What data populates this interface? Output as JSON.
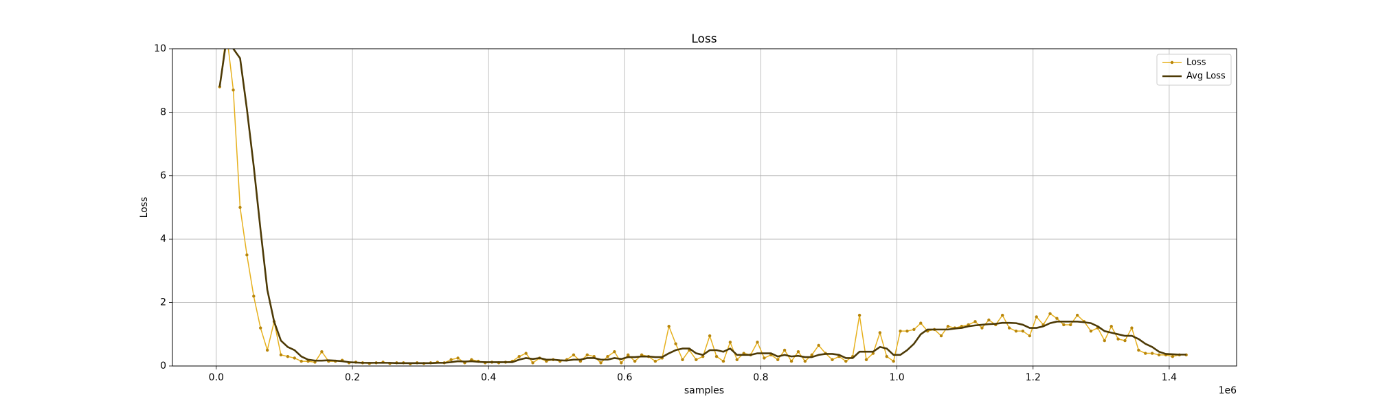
{
  "chart_data": {
    "type": "line",
    "title": "Loss",
    "xlabel": "samples",
    "ylabel": "Loss",
    "x_offset_label": "1e6",
    "x": [
      5000,
      15000,
      25000,
      35000,
      45000,
      55000,
      65000,
      75000,
      85000,
      95000,
      105000,
      115000,
      125000,
      135000,
      145000,
      155000,
      165000,
      175000,
      185000,
      195000,
      205000,
      215000,
      225000,
      235000,
      245000,
      255000,
      265000,
      275000,
      285000,
      295000,
      305000,
      315000,
      325000,
      335000,
      345000,
      355000,
      365000,
      375000,
      385000,
      395000,
      405000,
      415000,
      425000,
      435000,
      445000,
      455000,
      465000,
      475000,
      485000,
      495000,
      505000,
      515000,
      525000,
      535000,
      545000,
      555000,
      565000,
      575000,
      585000,
      595000,
      605000,
      615000,
      625000,
      635000,
      645000,
      655000,
      665000,
      675000,
      685000,
      695000,
      705000,
      715000,
      725000,
      735000,
      745000,
      755000,
      765000,
      775000,
      785000,
      795000,
      805000,
      815000,
      825000,
      835000,
      845000,
      855000,
      865000,
      875000,
      885000,
      895000,
      905000,
      915000,
      925000,
      935000,
      945000,
      955000,
      965000,
      975000,
      985000,
      995000,
      1005000,
      1015000,
      1025000,
      1035000,
      1045000,
      1055000,
      1065000,
      1075000,
      1085000,
      1095000,
      1105000,
      1115000,
      1125000,
      1135000,
      1145000,
      1155000,
      1165000,
      1175000,
      1185000,
      1195000,
      1205000,
      1215000,
      1225000,
      1235000,
      1245000,
      1255000,
      1265000,
      1275000,
      1285000,
      1295000,
      1305000,
      1315000,
      1325000,
      1335000,
      1345000,
      1355000,
      1365000,
      1375000,
      1385000,
      1395000,
      1405000,
      1415000,
      1425000
    ],
    "series": [
      {
        "name": "Loss",
        "color": "#e6b01c",
        "marker_color": "#b8860b",
        "values": [
          8.8,
          10.5,
          8.7,
          5.0,
          3.5,
          2.2,
          1.2,
          0.5,
          1.4,
          0.35,
          0.3,
          0.25,
          0.15,
          0.15,
          0.12,
          0.45,
          0.15,
          0.15,
          0.18,
          0.1,
          0.12,
          0.1,
          0.08,
          0.1,
          0.12,
          0.08,
          0.1,
          0.1,
          0.07,
          0.1,
          0.08,
          0.1,
          0.12,
          0.1,
          0.2,
          0.25,
          0.1,
          0.2,
          0.15,
          0.1,
          0.12,
          0.1,
          0.12,
          0.15,
          0.3,
          0.4,
          0.1,
          0.25,
          0.15,
          0.2,
          0.15,
          0.2,
          0.35,
          0.15,
          0.35,
          0.3,
          0.1,
          0.3,
          0.45,
          0.1,
          0.35,
          0.15,
          0.35,
          0.3,
          0.15,
          0.25,
          1.25,
          0.7,
          0.2,
          0.5,
          0.2,
          0.3,
          0.95,
          0.3,
          0.15,
          0.75,
          0.2,
          0.4,
          0.35,
          0.75,
          0.25,
          0.35,
          0.2,
          0.5,
          0.15,
          0.45,
          0.15,
          0.35,
          0.65,
          0.4,
          0.2,
          0.3,
          0.15,
          0.3,
          1.6,
          0.2,
          0.4,
          1.05,
          0.3,
          0.15,
          1.1,
          1.1,
          1.15,
          1.35,
          1.1,
          1.15,
          0.95,
          1.25,
          1.2,
          1.25,
          1.3,
          1.4,
          1.2,
          1.45,
          1.3,
          1.6,
          1.2,
          1.1,
          1.1,
          0.95,
          1.55,
          1.3,
          1.65,
          1.5,
          1.3,
          1.3,
          1.6,
          1.4,
          1.1,
          1.2,
          0.8,
          1.25,
          0.85,
          0.8,
          1.2,
          0.5,
          0.4,
          0.4,
          0.35,
          0.35,
          0.3,
          0.35,
          0.35
        ]
      },
      {
        "name": "Avg Loss",
        "color": "#4d3a06",
        "values": [
          8.8,
          10.3,
          10.0,
          9.7,
          8.1,
          6.3,
          4.3,
          2.4,
          1.4,
          0.8,
          0.6,
          0.5,
          0.3,
          0.2,
          0.17,
          0.17,
          0.18,
          0.17,
          0.15,
          0.12,
          0.11,
          0.1,
          0.1,
          0.1,
          0.1,
          0.1,
          0.09,
          0.09,
          0.09,
          0.09,
          0.09,
          0.09,
          0.1,
          0.1,
          0.12,
          0.15,
          0.14,
          0.15,
          0.13,
          0.12,
          0.12,
          0.12,
          0.12,
          0.12,
          0.2,
          0.25,
          0.22,
          0.25,
          0.2,
          0.2,
          0.18,
          0.17,
          0.2,
          0.2,
          0.25,
          0.25,
          0.2,
          0.2,
          0.25,
          0.22,
          0.28,
          0.28,
          0.3,
          0.3,
          0.28,
          0.28,
          0.4,
          0.5,
          0.55,
          0.55,
          0.4,
          0.35,
          0.5,
          0.5,
          0.45,
          0.55,
          0.35,
          0.35,
          0.35,
          0.4,
          0.4,
          0.4,
          0.3,
          0.35,
          0.3,
          0.32,
          0.28,
          0.28,
          0.35,
          0.38,
          0.38,
          0.35,
          0.25,
          0.25,
          0.45,
          0.45,
          0.45,
          0.6,
          0.55,
          0.35,
          0.35,
          0.5,
          0.7,
          1.0,
          1.15,
          1.15,
          1.15,
          1.15,
          1.18,
          1.2,
          1.25,
          1.28,
          1.3,
          1.32,
          1.33,
          1.36,
          1.36,
          1.35,
          1.3,
          1.2,
          1.2,
          1.25,
          1.35,
          1.4,
          1.4,
          1.4,
          1.4,
          1.38,
          1.35,
          1.25,
          1.1,
          1.05,
          1.0,
          0.95,
          0.95,
          0.85,
          0.7,
          0.6,
          0.45,
          0.38,
          0.37,
          0.36,
          0.36
        ]
      }
    ],
    "xlim": [
      -64400,
      1499000
    ],
    "xticks": [
      {
        "value": 0,
        "label": "0.0"
      },
      {
        "value": 200000,
        "label": "0.2"
      },
      {
        "value": 400000,
        "label": "0.4"
      },
      {
        "value": 600000,
        "label": "0.6"
      },
      {
        "value": 800000,
        "label": "0.8"
      },
      {
        "value": 1000000,
        "label": "1.0"
      },
      {
        "value": 1200000,
        "label": "1.2"
      },
      {
        "value": 1400000,
        "label": "1.4"
      }
    ],
    "ylim": [
      0,
      10
    ],
    "yticks": [
      0,
      2,
      4,
      6,
      8,
      10
    ],
    "grid": true,
    "legend": "upper right"
  }
}
